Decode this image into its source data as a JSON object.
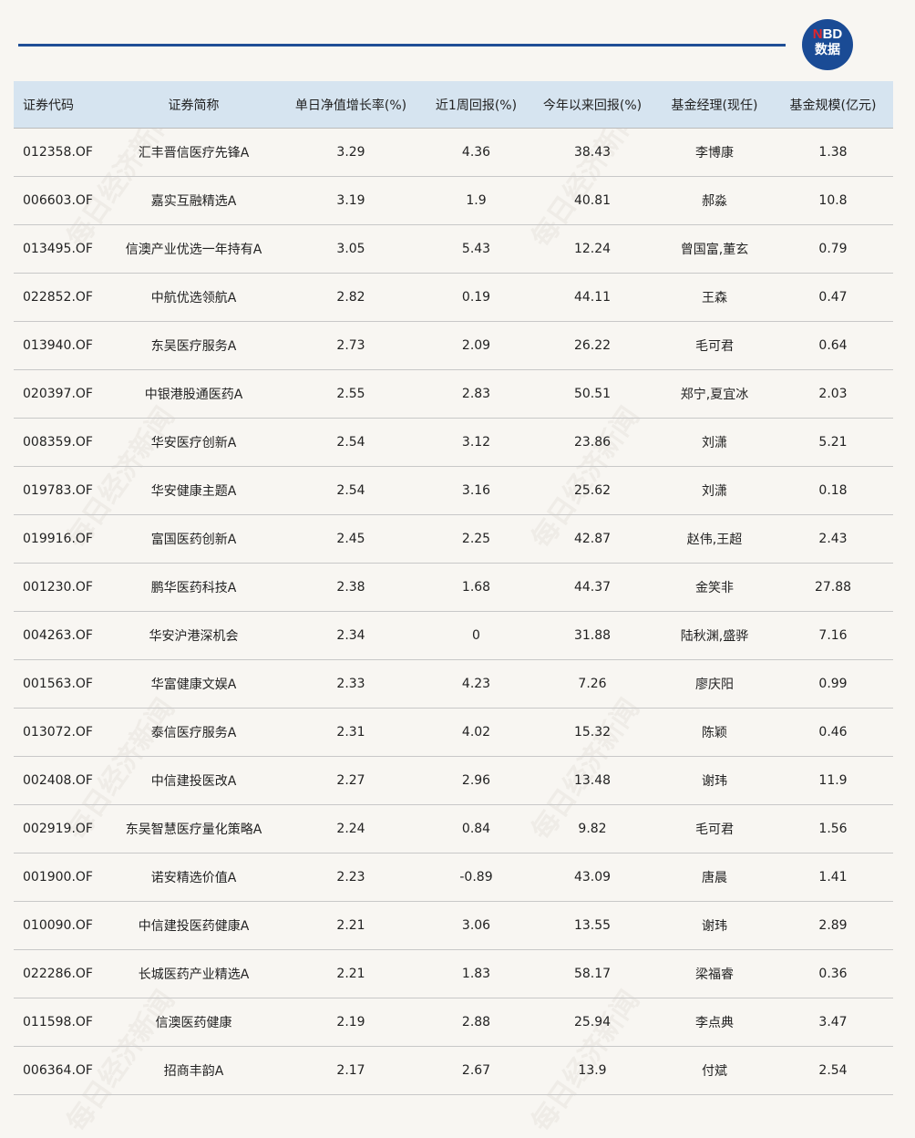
{
  "logo": {
    "brand_n": "N",
    "brand_bd": "BD",
    "sub": "数据"
  },
  "watermark": "每日经济新闻",
  "colors": {
    "rule": "#1f4e96",
    "header_bg": "#d6e4f0",
    "logo_bg": "#1a4b95",
    "logo_accent": "#e0262c"
  },
  "table": {
    "columns": [
      "证券代码",
      "证券简称",
      "单日净值增长率(%)",
      "近1周回报(%)",
      "今年以来回报(%)",
      "基金经理(现任)",
      "基金规模(亿元)"
    ],
    "rows": [
      [
        "012358.OF",
        "汇丰晋信医疗先锋A",
        "3.29",
        "4.36",
        "38.43",
        "李博康",
        "1.38"
      ],
      [
        "006603.OF",
        "嘉实互融精选A",
        "3.19",
        "1.9",
        "40.81",
        "郝淼",
        "10.8"
      ],
      [
        "013495.OF",
        "信澳产业优选一年持有A",
        "3.05",
        "5.43",
        "12.24",
        "曾国富,董玄",
        "0.79"
      ],
      [
        "022852.OF",
        "中航优选领航A",
        "2.82",
        "0.19",
        "44.11",
        "王森",
        "0.47"
      ],
      [
        "013940.OF",
        "东吴医疗服务A",
        "2.73",
        "2.09",
        "26.22",
        "毛可君",
        "0.64"
      ],
      [
        "020397.OF",
        "中银港股通医药A",
        "2.55",
        "2.83",
        "50.51",
        "郑宁,夏宜冰",
        "2.03"
      ],
      [
        "008359.OF",
        "华安医疗创新A",
        "2.54",
        "3.12",
        "23.86",
        "刘潇",
        "5.21"
      ],
      [
        "019783.OF",
        "华安健康主题A",
        "2.54",
        "3.16",
        "25.62",
        "刘潇",
        "0.18"
      ],
      [
        "019916.OF",
        "富国医药创新A",
        "2.45",
        "2.25",
        "42.87",
        "赵伟,王超",
        "2.43"
      ],
      [
        "001230.OF",
        "鹏华医药科技A",
        "2.38",
        "1.68",
        "44.37",
        "金笑非",
        "27.88"
      ],
      [
        "004263.OF",
        "华安沪港深机会",
        "2.34",
        "0",
        "31.88",
        "陆秋渊,盛骅",
        "7.16"
      ],
      [
        "001563.OF",
        "华富健康文娱A",
        "2.33",
        "4.23",
        "7.26",
        "廖庆阳",
        "0.99"
      ],
      [
        "013072.OF",
        "泰信医疗服务A",
        "2.31",
        "4.02",
        "15.32",
        "陈颖",
        "0.46"
      ],
      [
        "002408.OF",
        "中信建投医改A",
        "2.27",
        "2.96",
        "13.48",
        "谢玮",
        "11.9"
      ],
      [
        "002919.OF",
        "东吴智慧医疗量化策略A",
        "2.24",
        "0.84",
        "9.82",
        "毛可君",
        "1.56"
      ],
      [
        "001900.OF",
        "诺安精选价值A",
        "2.23",
        "-0.89",
        "43.09",
        "唐晨",
        "1.41"
      ],
      [
        "010090.OF",
        "中信建投医药健康A",
        "2.21",
        "3.06",
        "13.55",
        "谢玮",
        "2.89"
      ],
      [
        "022286.OF",
        "长城医药产业精选A",
        "2.21",
        "1.83",
        "58.17",
        "梁福睿",
        "0.36"
      ],
      [
        "011598.OF",
        "信澳医药健康",
        "2.19",
        "2.88",
        "25.94",
        "李点典",
        "3.47"
      ],
      [
        "006364.OF",
        "招商丰韵A",
        "2.17",
        "2.67",
        "13.9",
        "付斌",
        "2.54"
      ]
    ]
  }
}
